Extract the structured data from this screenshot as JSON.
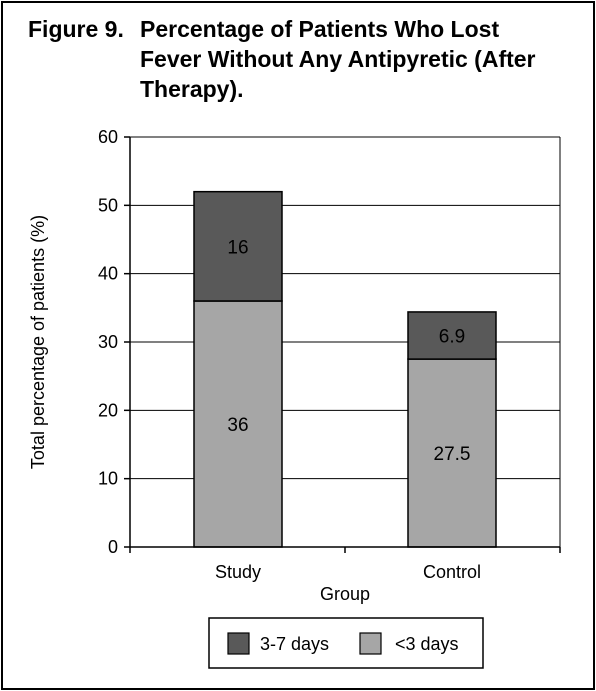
{
  "figure": {
    "number": "Figure 9.",
    "title": "Percentage of Patients Who Lost Fever Without Any Antipyretic (After Therapy)."
  },
  "chart_data": {
    "type": "bar",
    "stacked": true,
    "categories": [
      "Study",
      "Control"
    ],
    "series": [
      {
        "name": "<3 days",
        "values": [
          36,
          27.5
        ],
        "color": "#a6a6a6"
      },
      {
        "name": "3-7 days",
        "values": [
          16,
          6.9
        ],
        "color": "#595959"
      }
    ],
    "xlabel": "Group",
    "ylabel": "Total percentage of patients (%)",
    "ylim": [
      0,
      60
    ],
    "yticks": [
      0,
      10,
      20,
      30,
      40,
      50,
      60
    ],
    "grid": true,
    "legend": {
      "position": "bottom",
      "order": [
        "3-7 days",
        "<3 days"
      ]
    }
  }
}
